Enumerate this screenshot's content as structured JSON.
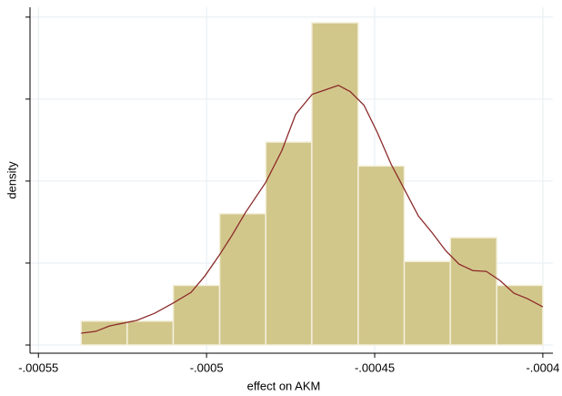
{
  "chart_data": {
    "type": "histogram",
    "x_label": "effect on AKM",
    "y_label": "density",
    "bins": [
      -0.0005373,
      -0.0005236,
      -0.0005099,
      -0.0004961,
      -0.0004824,
      -0.0004687,
      -0.0004549,
      -0.0004412,
      -0.0004275,
      -0.0004137,
      -0.0004
    ],
    "values": [
      1460,
      1460,
      3640,
      8010,
      12380,
      19660,
      10920,
      5100,
      6550,
      3640
    ],
    "color": "#d2c78b",
    "edge_color": "#f4f0dc",
    "kde": {
      "color": "#8c2a2a",
      "x": [
        -0.0005373,
        -0.000533,
        -0.0005289,
        -0.0005208,
        -0.0005154,
        -0.00051,
        -0.0005046,
        -0.0005005,
        -0.0004962,
        -0.0004924,
        -0.0004884,
        -0.0004824,
        -0.0004776,
        -0.0004735,
        -0.0004686,
        -0.0004646,
        -0.0004608,
        -0.0004573,
        -0.0004532,
        -0.0004492,
        -0.0004451,
        -0.0004411,
        -0.000437,
        -0.000433,
        -0.0004289,
        -0.0004249,
        -0.0004208,
        -0.0004168,
        -0.0004127,
        -0.0004086,
        -0.0004046,
        -0.0004
      ],
      "values": [
        720,
        830,
        1160,
        1500,
        1940,
        2550,
        3210,
        4210,
        5480,
        6700,
        8090,
        9920,
        11860,
        14070,
        15290,
        15570,
        15840,
        15460,
        14630,
        12960,
        11020,
        9470,
        7870,
        6870,
        5760,
        4930,
        4540,
        4490,
        3930,
        3160,
        2830,
        2330
      ]
    },
    "xlim": [
      -0.0005525,
      -0.000397
    ],
    "ylim": [
      -500,
      20600
    ],
    "xticks": [
      {
        "value": -0.00055,
        "label": "-.00055"
      },
      {
        "value": -0.0005,
        "label": "-.0005"
      },
      {
        "value": -0.00045,
        "label": "-.00045"
      },
      {
        "value": -0.0004,
        "label": "-.0004"
      }
    ],
    "yticks": [
      0,
      5000,
      10000,
      15000,
      20000
    ],
    "ytick_labels": false,
    "grid": true
  }
}
